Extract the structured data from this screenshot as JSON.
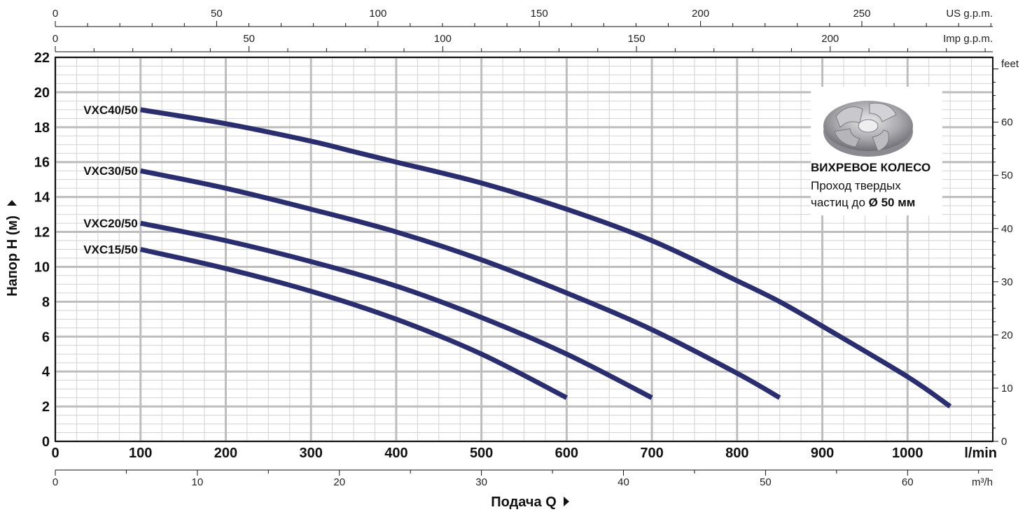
{
  "chart_data": {
    "type": "line",
    "title": "",
    "xlabel": "Подача Q",
    "ylabel": "Напор H (м)",
    "x_unit": "l/min",
    "xlim": [
      0,
      1100
    ],
    "ylim": [
      0,
      22
    ],
    "x_ticks": [
      0,
      100,
      200,
      300,
      400,
      500,
      600,
      700,
      800,
      900,
      1000
    ],
    "y_ticks": [
      0,
      2,
      4,
      6,
      8,
      10,
      12,
      14,
      16,
      18,
      20,
      22
    ],
    "grid": true,
    "series": [
      {
        "name": "VXC40/50",
        "x": [
          100,
          200,
          300,
          350,
          400,
          500,
          600,
          700,
          800,
          850,
          900,
          1000,
          1050
        ],
        "y": [
          19.0,
          18.2,
          17.2,
          16.6,
          16.0,
          14.8,
          13.3,
          11.5,
          9.2,
          8.0,
          6.6,
          3.7,
          2.0
        ]
      },
      {
        "name": "VXC30/50",
        "x": [
          100,
          200,
          300,
          400,
          500,
          600,
          700,
          800,
          850
        ],
        "y": [
          15.5,
          14.5,
          13.3,
          12.0,
          10.4,
          8.5,
          6.4,
          3.9,
          2.5
        ]
      },
      {
        "name": "VXC20/50",
        "x": [
          100,
          200,
          300,
          400,
          500,
          600,
          700
        ],
        "y": [
          12.5,
          11.5,
          10.3,
          8.9,
          7.1,
          5.0,
          2.5
        ]
      },
      {
        "name": "VXC15/50",
        "x": [
          100,
          200,
          300,
          400,
          500,
          600
        ],
        "y": [
          11.0,
          9.9,
          8.6,
          7.0,
          5.0,
          2.5
        ]
      }
    ],
    "secondary_axes": {
      "us_gpm": {
        "unit": "US g.p.m.",
        "ticks": [
          0,
          50,
          100,
          150,
          200,
          250
        ]
      },
      "imp_gpm": {
        "unit": "Imp g.p.m.",
        "ticks": [
          0,
          50,
          100,
          150,
          200
        ]
      },
      "m3h": {
        "unit": "m³/h",
        "ticks": [
          0,
          10,
          20,
          30,
          40,
          50,
          60
        ]
      },
      "feet": {
        "unit": "feet",
        "ticks": [
          0,
          10,
          20,
          30,
          40,
          50,
          60
        ]
      }
    },
    "line_color": "#2b2e6e"
  },
  "info_box": {
    "title": "ВИХРЕВОЕ КОЛЕСО",
    "line1": "Проход твердых",
    "line2_prefix": "частиц до ",
    "line2_bold": "Ø 50 мм"
  }
}
